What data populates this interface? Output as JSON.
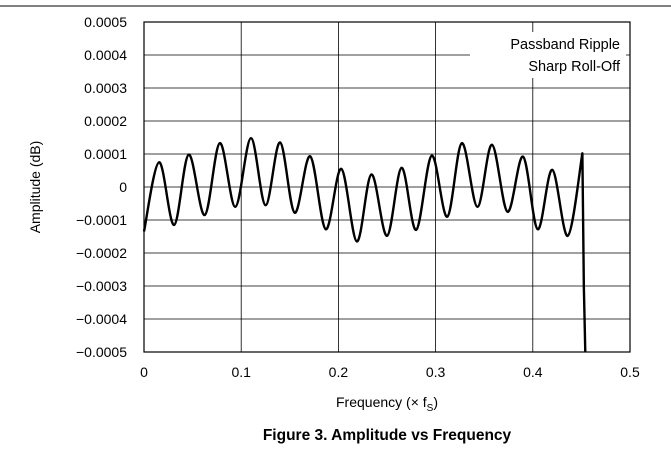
{
  "chart_data": {
    "type": "line",
    "title": "",
    "caption": "Figure 3. Amplitude vs Frequency",
    "xlabel": "Frequency (× f",
    "xlabel_subscript": "S",
    "xlabel_suffix": ")",
    "ylabel": "Amplitude (dB)",
    "xlim": [
      0,
      0.5
    ],
    "ylim": [
      -0.0005,
      0.0005
    ],
    "grid": true,
    "x_ticks": [
      0,
      0.1,
      0.2,
      0.3,
      0.4,
      0.5
    ],
    "x_tick_labels": [
      "0",
      "0.1",
      "0.2",
      "0.3",
      "0.4",
      "0.5"
    ],
    "y_ticks": [
      0.0005,
      0.0004,
      0.0003,
      0.0002,
      0.0001,
      0,
      -0.0001,
      -0.0002,
      -0.0003,
      -0.0004,
      -0.0005
    ],
    "y_tick_labels": [
      "0.0005",
      "0.0004",
      "0.0003",
      "0.0002",
      "0.0001",
      "0",
      "−0.0001",
      "−0.0002",
      "−0.0003",
      "−0.0004",
      "−0.0005"
    ],
    "annotations": [
      "Passband Ripple",
      "Sharp Roll-Off"
    ],
    "series": [
      {
        "x": [
          0,
          0.0155,
          0.031,
          0.046,
          0.0625,
          0.078,
          0.094,
          0.11,
          0.125,
          0.14,
          0.155,
          0.171,
          0.187,
          0.203,
          0.219,
          0.234,
          0.25,
          0.265,
          0.28,
          0.296,
          0.312,
          0.327,
          0.343,
          0.358,
          0.374,
          0.39,
          0.405,
          0.42,
          0.436,
          0.451,
          0.4525,
          0.454
        ],
        "y": [
          -0.000135,
          7.5e-05,
          -0.000115,
          9.8e-05,
          -8.5e-05,
          0.000133,
          -6e-05,
          0.000148,
          -5.5e-05,
          0.000135,
          -7.8e-05,
          9.3e-05,
          -0.000128,
          5.5e-05,
          -0.000165,
          3.8e-05,
          -0.000148,
          5.8e-05,
          -0.00013,
          9.5e-05,
          -9e-05,
          0.000133,
          -6e-05,
          0.000128,
          -7.5e-05,
          9.2e-05,
          -0.000128,
          5.2e-05,
          -0.000148,
          0.000102,
          -0.0003,
          -0.0005
        ]
      }
    ]
  }
}
